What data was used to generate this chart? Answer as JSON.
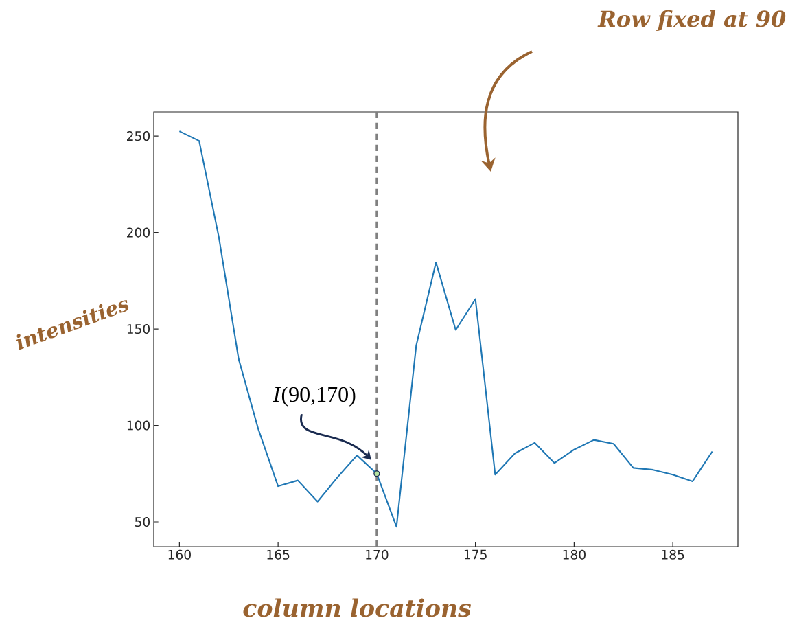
{
  "chart_data": {
    "type": "line",
    "xlabel": "column locations",
    "ylabel": "intensities",
    "annotations": [
      "*I*(90,170)",
      "Row fixed at 90"
    ],
    "series": [
      {
        "color": "#1f77b4",
        "x": [
          160,
          161,
          162,
          163,
          164,
          165,
          166,
          167,
          168,
          169,
          170,
          171,
          172,
          173,
          174,
          175,
          176,
          177,
          178,
          179,
          180,
          181,
          182,
          183,
          184,
          185,
          186,
          187
        ],
        "values": [
          252.5,
          247.5,
          197.5,
          134.5,
          98,
          68.5,
          71.5,
          60.5,
          73,
          84.5,
          75,
          47.5,
          141.5,
          184.5,
          149.5,
          165.5,
          74.5,
          85.5,
          91,
          80.5,
          87.5,
          92.5,
          90.5,
          78,
          77,
          74.5,
          71,
          86.5
        ]
      },
      {
        "type": "scatter",
        "color": "#b5e3a0",
        "x": [
          170
        ],
        "values": [
          75
        ]
      }
    ],
    "ref_lines": [
      {
        "axis": "x",
        "value": 170,
        "color": "#808080",
        "line_style": "dashed"
      }
    ],
    "xlim": [
      158.7,
      188.3
    ],
    "ylim": [
      37.2,
      262.5
    ],
    "xticks": [
      160,
      165,
      170,
      175,
      180,
      185
    ],
    "yticks": [
      50,
      100,
      150,
      200,
      250
    ]
  }
}
